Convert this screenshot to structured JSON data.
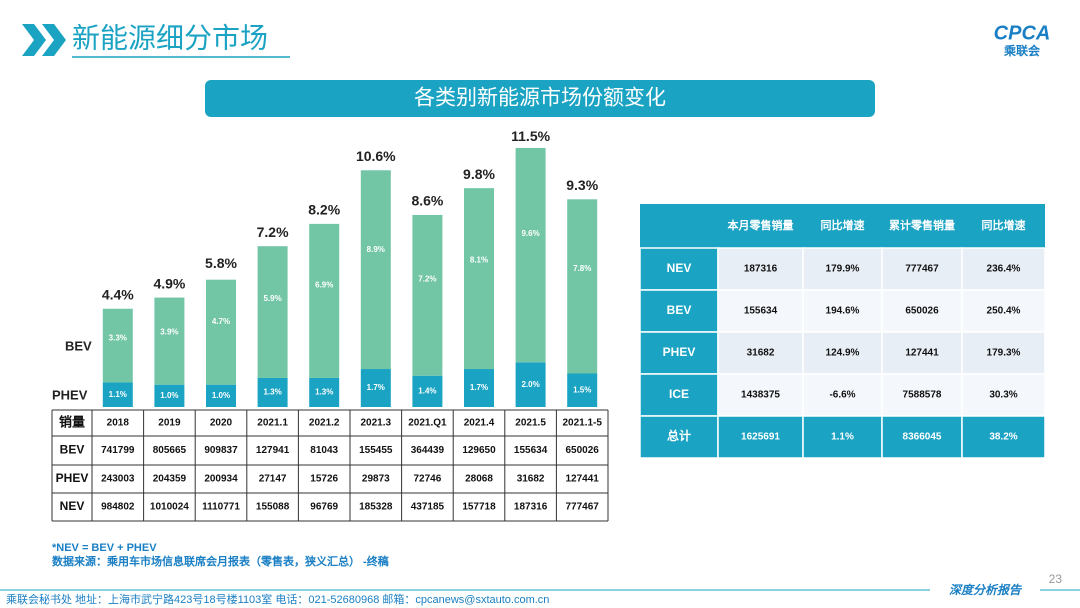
{
  "header": {
    "title": "新能源细分市场",
    "logo": "CPCA",
    "logo_sub": "乘联会"
  },
  "banner": "各类别新能源市场份额变化",
  "chart_data": {
    "type": "stacked_bar",
    "categories": [
      "2018",
      "2019",
      "2020",
      "2021.1",
      "2021.2",
      "2021.3",
      "2021.Q1",
      "2021.4",
      "2021.5",
      "2021.1-5"
    ],
    "series": [
      {
        "name": "PHEV",
        "color": "#1ba3c3",
        "values": [
          1.1,
          1.0,
          1.0,
          1.3,
          1.3,
          1.7,
          1.4,
          1.7,
          2.0,
          1.5
        ],
        "value_labels": [
          "1.1%",
          "1.0%",
          "1.0%",
          "1.3%",
          "1.3%",
          "1.7%",
          "1.4%",
          "1.7%",
          "2.0%",
          "1.5%"
        ]
      },
      {
        "name": "BEV",
        "color": "#72c6a6",
        "values": [
          3.3,
          3.9,
          4.7,
          5.9,
          6.9,
          8.9,
          7.2,
          8.1,
          9.6,
          7.8
        ],
        "value_labels": [
          "3.3%",
          "3.9%",
          "4.7%",
          "5.9%",
          "6.9%",
          "8.9%",
          "7.2%",
          "8.1%",
          "9.6%",
          "7.8%"
        ]
      }
    ],
    "totals": {
      "values": [
        4.4,
        4.9,
        5.8,
        7.2,
        8.2,
        10.6,
        8.6,
        9.8,
        11.5,
        9.3
      ],
      "value_labels": [
        "4.4%",
        "4.9%",
        "5.8%",
        "7.2%",
        "8.2%",
        "10.6%",
        "8.6%",
        "9.8%",
        "11.5%",
        "9.3%"
      ]
    },
    "ylim": [
      0,
      12
    ]
  },
  "sales_table": {
    "header": "销量",
    "rows": [
      {
        "label": "BEV",
        "values": [
          "741799",
          "805665",
          "909837",
          "127941",
          "81043",
          "155455",
          "364439",
          "129650",
          "155634",
          "650026"
        ]
      },
      {
        "label": "PHEV",
        "values": [
          "243003",
          "204359",
          "200934",
          "27147",
          "15726",
          "29873",
          "72746",
          "28068",
          "31682",
          "127441"
        ]
      },
      {
        "label": "NEV",
        "values": [
          "984802",
          "1010024",
          "1110771",
          "155088",
          "96769",
          "185328",
          "437185",
          "157718",
          "187316",
          "777467"
        ]
      }
    ]
  },
  "summary_table": {
    "columns": [
      "本月零售销量",
      "同比增速",
      "累计零售销量",
      "同比增速"
    ],
    "rows": [
      [
        "NEV",
        "187316",
        "179.9%",
        "777467",
        "236.4%"
      ],
      [
        "BEV",
        "155634",
        "194.6%",
        "650026",
        "250.4%"
      ],
      [
        "PHEV",
        "31682",
        "124.9%",
        "127441",
        "179.3%"
      ],
      [
        "ICE",
        "1438375",
        "-6.6%",
        "7588578",
        "30.3%"
      ],
      [
        "总计",
        "1625691",
        "1.1%",
        "8366045",
        "38.2%"
      ]
    ]
  },
  "notes": [
    "*NEV = BEV + PHEV",
    "数据来源：乘用车市场信息联席会月报表（零售表，狭义汇总） -终稿"
  ],
  "page_number": "23",
  "footer": {
    "contact": "乘联会秘书处    地址：上海市武宁路423号18号楼1103室    电话：021-52680968    邮箱：cpcanews@sxtauto.com.cn",
    "tag": "深度分析报告"
  }
}
